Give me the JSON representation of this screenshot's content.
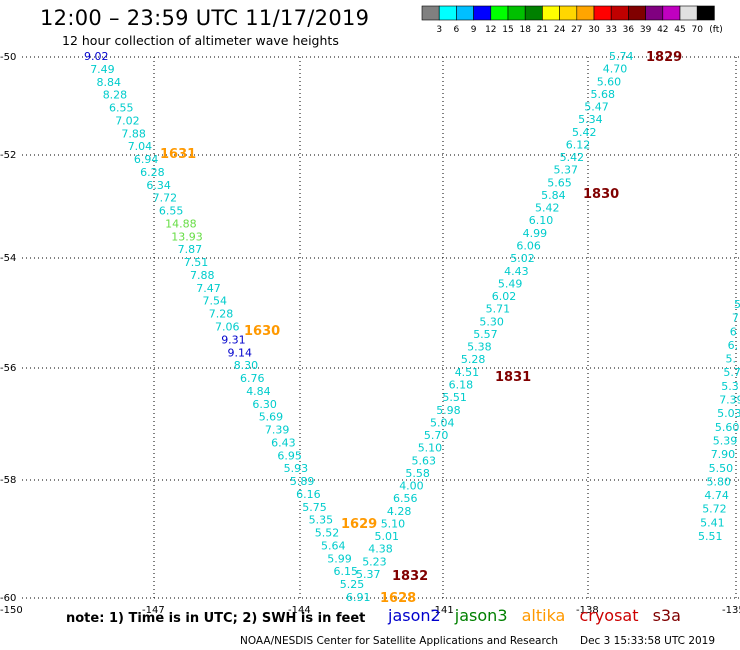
{
  "header": {
    "title": "12:00 – 23:59 UTC 11/17/2019",
    "subtitle": "12 hour collection of altimeter wave heights"
  },
  "colorbar": {
    "ticks": [
      "3",
      "6",
      "9",
      "12",
      "15",
      "18",
      "21",
      "24",
      "27",
      "30",
      "33",
      "36",
      "39",
      "42",
      "45",
      "70"
    ],
    "unit": "(ft)",
    "colors": [
      "#808080",
      "#00ffff",
      "#00bfff",
      "#0000ff",
      "#00ff00",
      "#00c000",
      "#008000",
      "#ffff00",
      "#ffd700",
      "#ffa500",
      "#ff0000",
      "#c00000",
      "#800000",
      "#800080",
      "#c000c0",
      "#e0e0e0",
      "#000000"
    ]
  },
  "axes": {
    "y_labels": [
      "-50",
      "-52",
      "-54",
      "-56",
      "-58",
      "-60"
    ],
    "x_labels": [
      "-150",
      "-147",
      "-144",
      "-141",
      "-138",
      "-135"
    ]
  },
  "series": {
    "jason2": {
      "color": "#0000cc"
    },
    "jason3": {
      "color": "#008000"
    },
    "altika": {
      "color": "#ff9900"
    },
    "cryosat": {
      "color": "#cc0000"
    },
    "s3a": {
      "color": "#800000"
    }
  },
  "track_a": {
    "heights": [
      "9.02",
      "7.49",
      "8.84",
      "8.28",
      "6.55",
      "7.02",
      "7.88",
      "7.04",
      "6.94",
      "6.28",
      "6.34",
      "7.72",
      "6.55",
      "14.88",
      "13.93",
      "7.87",
      "7.51",
      "7.88",
      "7.47",
      "7.54",
      "7.28",
      "7.06",
      "9.31",
      "9.14",
      "8.30",
      "6.76",
      "4.84",
      "6.30",
      "5.69",
      "7.39",
      "6.43",
      "6.95",
      "5.93",
      "5.89",
      "6.16",
      "5.75",
      "5.35",
      "5.52",
      "5.64",
      "5.99",
      "6.15",
      "5.25",
      "6.91"
    ],
    "colors": [
      "#0000cc",
      "#00cccc",
      "#00cccc",
      "#00cccc",
      "#00cccc",
      "#00cccc",
      "#00cccc",
      "#00cccc",
      "#00cccc",
      "#00cccc",
      "#00cccc",
      "#00cccc",
      "#00cccc",
      "#66dd44",
      "#66dd44",
      "#00cccc",
      "#00cccc",
      "#00cccc",
      "#00cccc",
      "#00cccc",
      "#00cccc",
      "#00cccc",
      "#0000cc",
      "#0000cc",
      "#00cccc",
      "#00cccc",
      "#00cccc",
      "#00cccc",
      "#00cccc",
      "#00cccc",
      "#00cccc",
      "#00cccc",
      "#00cccc",
      "#00cccc",
      "#00cccc",
      "#00cccc",
      "#00cccc",
      "#00cccc",
      "#00cccc",
      "#00cccc",
      "#00cccc",
      "#00cccc",
      "#00cccc"
    ]
  },
  "track_b": {
    "heights": [
      "5.74",
      "4.70",
      "5.60",
      "5.68",
      "5.47",
      "5.34",
      "5.42",
      "6.12",
      "5.42",
      "5.37",
      "5.65",
      "5.84",
      "5.42",
      "6.10",
      "4.99",
      "6.06",
      "5.02",
      "4.43",
      "5.49",
      "6.02",
      "5.71",
      "5.30",
      "5.57",
      "5.38",
      "5.28",
      "4.51",
      "6.18",
      "5.51",
      "5.98",
      "5.04",
      "5.70",
      "5.10",
      "5.63",
      "5.58",
      "4.00",
      "6.56",
      "4.28",
      "5.10",
      "5.01",
      "4.38",
      "5.23",
      "5.37"
    ]
  },
  "track_c": {
    "heights": [
      "5",
      "7",
      "6",
      "6.",
      "5.",
      "5.7",
      "5.3",
      "7.39",
      "5.03",
      "5.60",
      "5.39",
      "7.90",
      "5.50",
      "5.80",
      "4.74",
      "5.72",
      "5.41",
      "5.51"
    ]
  },
  "time_labels": {
    "t1831a": "1631",
    "t1630": "1630",
    "t1629": "1629",
    "t1628": "1628",
    "t1829": "1829",
    "t1830": "1830",
    "t1831": "1831",
    "t1832": "1832"
  },
  "footer": {
    "note": "note:  1) Time is in UTC;  2) SWH is in feet",
    "legend": [
      "jason2",
      "jason3",
      "altika",
      "cryosat",
      "s3a"
    ],
    "credit": "NOAA/NESDIS Center for Satellite Applications and Research",
    "timestamp": "Dec  3 15:33:58 UTC 2019"
  }
}
